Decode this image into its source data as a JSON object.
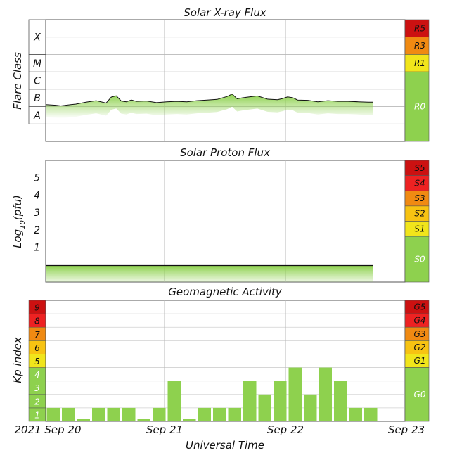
{
  "colors": {
    "green": "#8ed14e",
    "yellow": "#f1e51b",
    "gold": "#f7c312",
    "orange": "#f08a12",
    "red": "#ee2222",
    "darkred": "#cc1111",
    "grid": "#b8b8b8",
    "trace": "#111111"
  },
  "chart_data": [
    {
      "type": "line",
      "title": "Solar X-ray Flux",
      "ylabel": "Flare Class",
      "y_scale": "log",
      "ylim": [
        1e-09,
        0.01
      ],
      "class_labels": [
        {
          "label": "A",
          "from": 1e-08,
          "to": 1e-07
        },
        {
          "label": "B",
          "from": 1e-07,
          "to": 1e-06
        },
        {
          "label": "C",
          "from": 1e-06,
          "to": 1e-05
        },
        {
          "label": "M",
          "from": 1e-05,
          "to": 0.0001
        },
        {
          "label": "X",
          "from": 0.0001,
          "to": 0.01
        }
      ],
      "scale_levels": [
        {
          "label": "R5",
          "color": "darkred"
        },
        {
          "label": "R3",
          "color": "orange"
        },
        {
          "label": "R1",
          "color": "yellow"
        },
        {
          "label": "R0",
          "color": "green"
        }
      ],
      "x_start": "2021-09-20T00:00Z",
      "x_end": "2021-09-22T17:00Z",
      "series": [
        {
          "x_hours": [
            0,
            2,
            3,
            4,
            5,
            6,
            8,
            10,
            12,
            13,
            14,
            15,
            16,
            17,
            18,
            20,
            22,
            24,
            26,
            28,
            30,
            32,
            34,
            36,
            37,
            38,
            39,
            40,
            42,
            44,
            46,
            47,
            48,
            49,
            50,
            52,
            54,
            56,
            58,
            60,
            62,
            64,
            65
          ],
          "values": [
            1.3e-07,
            1.2e-07,
            1.1e-07,
            1.2e-07,
            1.3e-07,
            1.4e-07,
            1.8e-07,
            2.2e-07,
            1.6e-07,
            3.5e-07,
            4.2e-07,
            2.1e-07,
            1.9e-07,
            2.4e-07,
            2e-07,
            2.1e-07,
            1.7e-07,
            1.9e-07,
            2e-07,
            1.9e-07,
            2.2e-07,
            2.4e-07,
            2.6e-07,
            3.8e-07,
            5.3e-07,
            2.8e-07,
            3.2e-07,
            3.5e-07,
            4.1e-07,
            2.7e-07,
            2.5e-07,
            2.9e-07,
            3.6e-07,
            3.3e-07,
            2.4e-07,
            2.3e-07,
            1.9e-07,
            2.2e-07,
            2e-07,
            2e-07,
            1.9e-07,
            1.8e-07,
            1.8e-07
          ]
        }
      ]
    },
    {
      "type": "line",
      "title": "Solar Proton Flux",
      "ylabel": "Log10(pfu)",
      "ylim": [
        -1,
        6
      ],
      "yticks": [
        "1",
        "2",
        "3",
        "4",
        "5"
      ],
      "scale_levels": [
        {
          "label": "S5",
          "color": "darkred"
        },
        {
          "label": "S4",
          "color": "red"
        },
        {
          "label": "S3",
          "color": "orange"
        },
        {
          "label": "S2",
          "color": "gold"
        },
        {
          "label": "S1",
          "color": "yellow"
        },
        {
          "label": "S0",
          "color": "green"
        }
      ],
      "x_start": "2021-09-20T00:00Z",
      "x_end": "2021-09-22T17:00Z",
      "series": [
        {
          "x_hours": [
            0,
            65
          ],
          "values": [
            -0.05,
            -0.05
          ]
        }
      ]
    },
    {
      "type": "bar",
      "title": "Geomagnetic Activity",
      "ylabel": "Kp index",
      "xlabel": "Universal Time",
      "ylim": [
        0,
        9
      ],
      "kp_levels": [
        "1",
        "2",
        "3",
        "4",
        "5",
        "6",
        "7",
        "8",
        "9"
      ],
      "scale_levels": [
        {
          "label": "G5",
          "color": "darkred"
        },
        {
          "label": "G4",
          "color": "red"
        },
        {
          "label": "G3",
          "color": "orange"
        },
        {
          "label": "G2",
          "color": "gold"
        },
        {
          "label": "G1",
          "color": "yellow"
        },
        {
          "label": "G0",
          "color": "green"
        }
      ],
      "bar_interval_hours": 3,
      "values": [
        1,
        1,
        0.2,
        1,
        1,
        1,
        0.2,
        1,
        3,
        0.2,
        1,
        1,
        1,
        3,
        2,
        3,
        4,
        2,
        4,
        3,
        1,
        1
      ],
      "x_ticks": [
        "2021 Sep 20",
        "Sep 21",
        "Sep 22",
        "Sep 23"
      ]
    }
  ]
}
